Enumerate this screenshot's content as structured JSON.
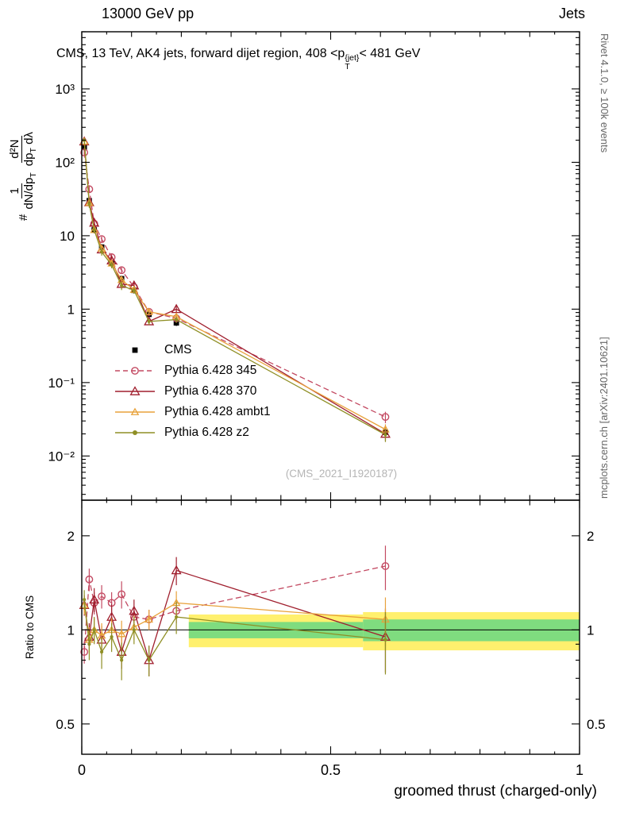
{
  "chart_data": {
    "type": "line",
    "header": {
      "left": "13000 GeV pp",
      "right": "Jets"
    },
    "title": {
      "pre": "CMS, 13 TeV, AK4 jets, forward dijet region, 408 <p",
      "sup": "{jet}",
      "sub": "T",
      "post": "< 481 GeV"
    },
    "ylabel": {
      "prefix": "#",
      "f1_num": "1",
      "f1_den": "dN/dp",
      "f1_den_sub": "T",
      "f2_num": "d²N",
      "f2_den": "dp",
      "f2_den_sub": "T",
      "f2_den_tail": " dλ"
    },
    "ratio_label": "Ratio to CMS",
    "xlabel": "groomed thrust (charged-only)",
    "watermark": "(CMS_2021_I1920187)",
    "credits": {
      "right_top": "Rivet 4.1.0, ≥ 100k events",
      "right_bottom": "mcplots.cern.ch [arXiv:2401.10621]"
    },
    "axes": {
      "x_min": 0,
      "x_max": 1,
      "main_y_min": 0.0025,
      "main_y_max": 6000,
      "ratio_y_min": 0.4,
      "ratio_y_max": 2.6,
      "xticks": [
        {
          "v": 0,
          "label": "0"
        },
        {
          "v": 0.5,
          "label": "0.5"
        },
        {
          "v": 1,
          "label": "1"
        }
      ],
      "main_yticks": [
        {
          "v": 0.01,
          "label": "10⁻²"
        },
        {
          "v": 0.1,
          "label": "10⁻¹"
        },
        {
          "v": 1,
          "label": "1"
        },
        {
          "v": 10,
          "label": "10"
        },
        {
          "v": 100,
          "label": "10²"
        },
        {
          "v": 1000,
          "label": "10³"
        }
      ],
      "ratio_yticks": [
        {
          "v": 0.5,
          "label": "0.5"
        },
        {
          "v": 1,
          "label": "1"
        },
        {
          "v": 2,
          "label": "2"
        }
      ]
    },
    "bands": {
      "yellow_color": "#fff06e",
      "green_color": "#7fdc7f",
      "segments": [
        {
          "x0": 0.215,
          "x1": 0.565,
          "yellow": [
            0.88,
            1.12
          ],
          "green": [
            0.94,
            1.06
          ]
        },
        {
          "x0": 0.565,
          "x1": 1.0,
          "yellow": [
            0.86,
            1.14
          ],
          "green": [
            0.92,
            1.08
          ]
        }
      ]
    },
    "x": [
      0.005,
      0.015,
      0.025,
      0.04,
      0.06,
      0.08,
      0.105,
      0.135,
      0.19,
      0.61
    ],
    "series": [
      {
        "id": "cms",
        "label": "CMS",
        "color": "#000000",
        "marker": "square",
        "msize": 3.4,
        "line": "none",
        "y": [
          160,
          30,
          12,
          7.0,
          4.2,
          2.6,
          1.8,
          0.85,
          0.65,
          0.021
        ],
        "y_err": [
          18,
          3,
          1.2,
          0.7,
          0.4,
          0.25,
          0.17,
          0.09,
          0.06,
          0.003
        ],
        "ratio": null,
        "ratio_err": null
      },
      {
        "id": "p345",
        "label": "Pythia 6.428 345",
        "color": "#c34a62",
        "marker": "circle",
        "msize": 4.2,
        "line": "dashed",
        "y": [
          136,
          43,
          14.6,
          9.0,
          5.1,
          3.4,
          2.0,
          0.92,
          0.75,
          0.034
        ],
        "y_err": [
          10,
          4,
          1.3,
          0.8,
          0.5,
          0.35,
          0.2,
          0.08,
          0.08,
          0.006
        ],
        "ratio": [
          0.85,
          1.45,
          1.22,
          1.28,
          1.22,
          1.3,
          1.1,
          1.08,
          1.15,
          1.6
        ],
        "ratio_err": [
          0.07,
          0.12,
          0.1,
          0.11,
          0.1,
          0.13,
          0.09,
          0.08,
          0.1,
          0.26
        ]
      },
      {
        "id": "p370",
        "label": "Pythia 6.428 370",
        "color": "#a01f2e",
        "marker": "triangle",
        "msize": 5.4,
        "line": "solid",
        "y": [
          192,
          28.5,
          15,
          6.5,
          4.6,
          2.2,
          2.1,
          0.68,
          1.0,
          0.02
        ],
        "y_err": [
          14,
          3,
          1.4,
          0.7,
          0.5,
          0.3,
          0.2,
          0.07,
          0.1,
          0.004
        ],
        "ratio": [
          1.2,
          0.95,
          1.25,
          0.93,
          1.1,
          0.85,
          1.15,
          0.8,
          1.55,
          0.95
        ],
        "ratio_err": [
          0.09,
          0.1,
          0.11,
          0.1,
          0.11,
          0.1,
          0.1,
          0.09,
          0.16,
          0.22
        ]
      },
      {
        "id": "ambt1",
        "label": "Pythia 6.428 ambt1",
        "color": "#e8a23b",
        "marker": "triangle",
        "msize": 4.2,
        "line": "solid",
        "y": [
          192,
          28,
          12,
          6.7,
          4.2,
          2.5,
          1.84,
          0.92,
          0.79,
          0.023
        ],
        "y_err": [
          13,
          3,
          1.1,
          0.7,
          0.4,
          0.3,
          0.18,
          0.08,
          0.08,
          0.004
        ],
        "ratio": [
          1.2,
          0.93,
          1.0,
          0.96,
          1.0,
          0.97,
          1.02,
          1.08,
          1.22,
          1.08
        ],
        "ratio_err": [
          0.08,
          0.09,
          0.09,
          0.09,
          0.09,
          0.1,
          0.09,
          0.08,
          0.11,
          0.19
        ]
      },
      {
        "id": "z2",
        "label": "Pythia 6.428 z2",
        "color": "#8f8f25",
        "marker": "dot",
        "msize": 2.1,
        "line": "solid",
        "y": [
          200,
          27,
          12,
          6.0,
          4.0,
          2.1,
          1.8,
          0.68,
          0.72,
          0.0195
        ],
        "y_err": [
          14,
          3,
          1.1,
          0.65,
          0.4,
          0.28,
          0.17,
          0.07,
          0.07,
          0.004
        ],
        "ratio": [
          1.25,
          0.9,
          1.0,
          0.85,
          0.95,
          0.8,
          1.0,
          0.8,
          1.1,
          0.93
        ],
        "ratio_err": [
          0.09,
          0.1,
          0.1,
          0.1,
          0.1,
          0.11,
          0.1,
          0.09,
          0.13,
          0.21
        ]
      }
    ]
  }
}
